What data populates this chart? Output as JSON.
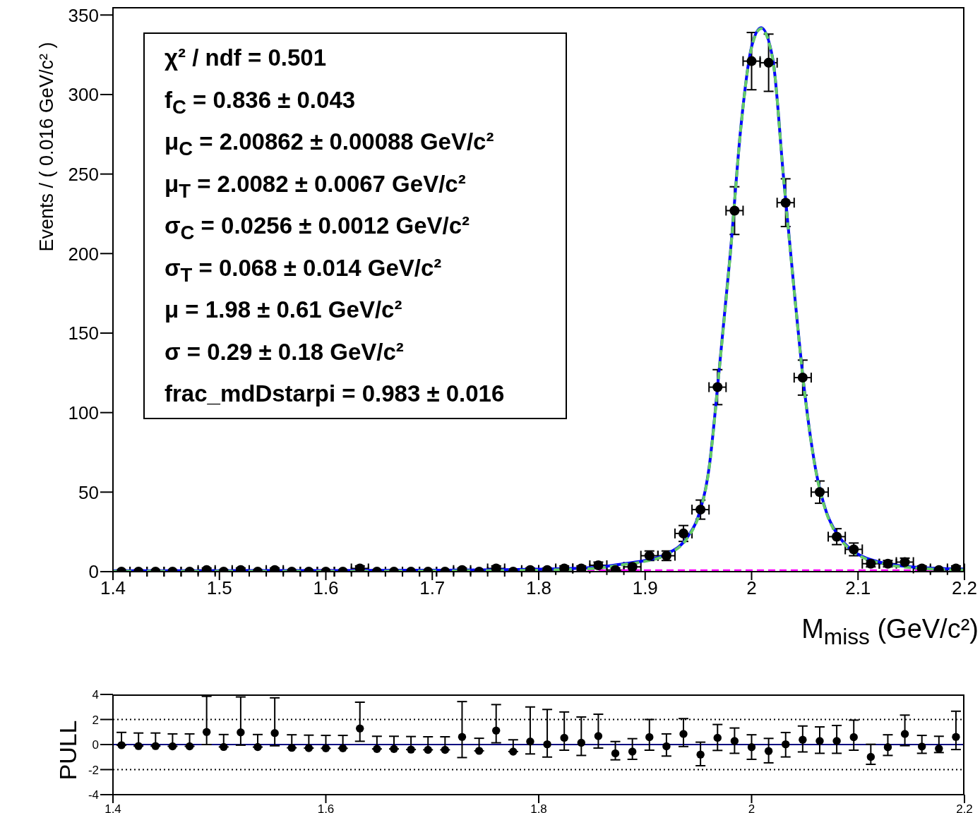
{
  "chart_data": [
    {
      "type": "scatter",
      "xlabel": "M$_{miss}$ (GeV/c²)",
      "ylabel": "Events / ( 0.016 GeV/c² )",
      "x": [
        1.408,
        1.424,
        1.44,
        1.456,
        1.472,
        1.488,
        1.504,
        1.52,
        1.536,
        1.552,
        1.568,
        1.584,
        1.6,
        1.616,
        1.632,
        1.648,
        1.664,
        1.68,
        1.696,
        1.712,
        1.728,
        1.744,
        1.76,
        1.776,
        1.792,
        1.808,
        1.824,
        1.84,
        1.856,
        1.872,
        1.888,
        1.904,
        1.92,
        1.936,
        1.952,
        1.968,
        1.984,
        2.0,
        2.016,
        2.032,
        2.048,
        2.064,
        2.08,
        2.096,
        2.112,
        2.128,
        2.144,
        2.16,
        2.176,
        2.192
      ],
      "xlim": [
        1.4,
        2.2
      ],
      "xticks": [
        1.4,
        1.5,
        1.6,
        1.7,
        1.8,
        1.9,
        2,
        2.1,
        2.2
      ],
      "ylim": [
        0,
        355
      ],
      "yticks": [
        0,
        50,
        100,
        150,
        200,
        250,
        300,
        350
      ],
      "series": [
        {
          "marker": "circle",
          "color": "#000000",
          "values": [
            0,
            0,
            0,
            0,
            0,
            1,
            0,
            1,
            0,
            1,
            0,
            0,
            0,
            0,
            2,
            0,
            0,
            0,
            0,
            0,
            1,
            0,
            2,
            0,
            1,
            1,
            2,
            2,
            4,
            1,
            3,
            10,
            10,
            24,
            39,
            116,
            227,
            321,
            320,
            232,
            122,
            50,
            22,
            14,
            5,
            5,
            6,
            2,
            1,
            2
          ],
          "errors": [
            [
              0,
              1.1
            ],
            [
              0,
              1.1
            ],
            [
              0,
              1.1
            ],
            [
              0,
              1.1
            ],
            [
              0,
              1.1
            ],
            [
              0.2,
              2.3
            ],
            [
              0,
              1.1
            ],
            [
              0.2,
              2.3
            ],
            [
              0,
              1.1
            ],
            [
              0.2,
              2.3
            ],
            [
              0,
              1.1
            ],
            [
              0,
              1.1
            ],
            [
              0,
              1.1
            ],
            [
              0,
              1.1
            ],
            [
              0.7,
              3.6
            ],
            [
              0,
              1.1
            ],
            [
              0,
              1.1
            ],
            [
              0,
              1.1
            ],
            [
              0,
              1.1
            ],
            [
              0,
              1.1
            ],
            [
              0.2,
              2.3
            ],
            [
              0,
              1.1
            ],
            [
              0.7,
              3.6
            ],
            [
              0,
              1.1
            ],
            [
              0.2,
              2.3
            ],
            [
              0.2,
              2.3
            ],
            [
              0.7,
              3.6
            ],
            [
              0.7,
              3.6
            ],
            2,
            [
              0.2,
              2.3
            ],
            2,
            3,
            3,
            5,
            6,
            11,
            15,
            18,
            18,
            15,
            11,
            7,
            5,
            4,
            2,
            2,
            2.5,
            [
              0.7,
              3.6
            ],
            [
              0.2,
              2.3
            ],
            [
              0.7,
              3.6
            ]
          ],
          "xerrors": [
            0.008,
            0.008,
            0.008,
            0.008,
            0.008,
            0.008,
            0.008,
            0.008,
            0.008,
            0.008,
            0.008,
            0.008,
            0.008,
            0.008,
            0.008,
            0.008,
            0.008,
            0.008,
            0.008,
            0.008,
            0.008,
            0.008,
            0.008,
            0.008,
            0.008,
            0.008,
            0.008,
            0.008,
            0.008,
            0.008,
            0.008,
            0.008,
            0.008,
            0.008,
            0.008,
            0.008,
            0.008,
            0.008,
            0.008,
            0.008,
            0.008,
            0.008,
            0.008,
            0.008,
            0.008,
            0.008,
            0.008,
            0.008,
            0.008,
            0.008
          ]
        },
        {
          "type": "line",
          "color": "#ff00ff",
          "line_style": "dashed",
          "x": [
            1.4,
            1.6,
            1.8,
            2.0,
            2.2
          ],
          "values": [
            0.3,
            0.5,
            0.5,
            0.5,
            0.5
          ]
        },
        {
          "type": "line",
          "color": "#0000ff",
          "line_style": "solid",
          "x": [
            1.4,
            1.5,
            1.6,
            1.7,
            1.75,
            1.8,
            1.83,
            1.86,
            1.88,
            1.9,
            1.92,
            1.94,
            1.95,
            1.96,
            1.97,
            1.98,
            1.99,
            2.0,
            2.009,
            2.02,
            2.03,
            2.04,
            2.05,
            2.06,
            2.07,
            2.08,
            2.09,
            2.1,
            2.12,
            2.15,
            2.2
          ],
          "values": [
            0.5,
            0.6,
            0.7,
            0.9,
            1.1,
            1.5,
            2,
            3,
            5,
            7,
            11,
            22,
            35,
            65,
            130,
            200,
            280,
            330,
            342,
            322,
            248,
            177,
            112,
            65,
            38,
            24,
            16,
            11,
            6,
            3,
            1.5
          ]
        },
        {
          "type": "line",
          "color": "#66cc66",
          "line_style": "dashed",
          "x": [
            1.4,
            1.5,
            1.6,
            1.7,
            1.75,
            1.8,
            1.83,
            1.86,
            1.88,
            1.9,
            1.92,
            1.94,
            1.95,
            1.96,
            1.97,
            1.98,
            1.99,
            2.0,
            2.009,
            2.02,
            2.03,
            2.04,
            2.05,
            2.06,
            2.07,
            2.08,
            2.09,
            2.1,
            2.12,
            2.15,
            2.2
          ],
          "values": [
            0.2,
            0.2,
            0.2,
            0.4,
            0.6,
            0.9,
            1.4,
            2.5,
            4.5,
            6.5,
            10.5,
            21.5,
            34.5,
            64.5,
            129.5,
            199.5,
            279.5,
            329.5,
            341.5,
            321.5,
            247.5,
            176.5,
            111.5,
            64.5,
            37.5,
            23.5,
            15.5,
            10.5,
            5.5,
            2.5,
            1
          ]
        }
      ],
      "annotations": [
        "χ² / ndf = 0.501",
        "f$_{C}$ =  0.836 ± 0.043",
        "μ$_{C}$ =  2.00862 ± 0.00088 GeV/c²",
        "μ$_{T}$ =  2.0082 ± 0.0067 GeV/c²",
        "σ$_{C}$ =  0.0256 ± 0.0012 GeV/c²",
        "σ$_{T}$ =  0.068 ± 0.014 GeV/c²",
        "μ =  1.98 ± 0.61 GeV/c²",
        "σ =  0.29 ± 0.18 GeV/c²",
        "frac_mdDstarpi =  0.983 ± 0.016"
      ]
    },
    {
      "type": "scatter",
      "ylabel": "PULL",
      "x": [
        1.408,
        1.424,
        1.44,
        1.456,
        1.472,
        1.488,
        1.504,
        1.52,
        1.536,
        1.552,
        1.568,
        1.584,
        1.6,
        1.616,
        1.632,
        1.648,
        1.664,
        1.68,
        1.696,
        1.712,
        1.728,
        1.744,
        1.76,
        1.776,
        1.792,
        1.808,
        1.824,
        1.84,
        1.856,
        1.872,
        1.888,
        1.904,
        1.92,
        1.936,
        1.952,
        1.968,
        1.984,
        2.0,
        2.016,
        2.032,
        2.048,
        2.064,
        2.08,
        2.096,
        2.112,
        2.128,
        2.144,
        2.16,
        2.176,
        2.192
      ],
      "xlim": [
        1.4,
        2.2
      ],
      "xticks": [
        1.4,
        1.6,
        1.8,
        2,
        2.2
      ],
      "ylim": [
        -4,
        4
      ],
      "yticks": [
        -4,
        -2,
        0,
        2,
        4
      ],
      "series": [
        {
          "marker": "circle",
          "color": "#000000",
          "values": [
            -0.05,
            -0.12,
            -0.12,
            -0.14,
            -0.14,
            1.0,
            -0.19,
            0.97,
            -0.2,
            0.92,
            -0.26,
            -0.28,
            -0.3,
            -0.3,
            1.28,
            -0.35,
            -0.35,
            -0.4,
            -0.42,
            -0.42,
            0.61,
            -0.5,
            1.11,
            -0.56,
            0.24,
            0.02,
            0.54,
            0.14,
            0.68,
            -0.7,
            -0.56,
            0.59,
            -0.14,
            0.85,
            -0.8,
            0.54,
            0.28,
            -0.21,
            -0.52,
            0.02,
            0.38,
            0.28,
            0.28,
            0.59,
            -0.99,
            -0.21,
            0.85,
            -0.16,
            -0.33,
            0.61
          ],
          "errors": [
            [
              -0.05,
              0.97
            ],
            [
              -0.12,
              0.92
            ],
            [
              -0.12,
              0.92
            ],
            [
              -0.14,
              0.85
            ],
            [
              -0.14,
              0.85
            ],
            [
              0.0,
              3.85
            ],
            [
              -0.19,
              0.8
            ],
            [
              -0.05,
              3.8
            ],
            [
              -0.2,
              0.8
            ],
            [
              -0.1,
              3.73
            ],
            [
              -0.26,
              0.78
            ],
            [
              -0.28,
              0.75
            ],
            [
              -0.3,
              0.73
            ],
            [
              -0.3,
              0.73
            ],
            [
              0.26,
              3.38
            ],
            [
              -0.35,
              0.66
            ],
            [
              -0.35,
              0.66
            ],
            [
              -0.4,
              0.64
            ],
            [
              -0.42,
              0.62
            ],
            [
              -0.42,
              0.62
            ],
            [
              -1.04,
              3.43
            ],
            [
              -0.5,
              0.5
            ],
            [
              0.14,
              3.19
            ],
            [
              -0.56,
              0.38
            ],
            [
              -0.75,
              3.0
            ],
            [
              -1.0,
              2.8
            ],
            [
              -0.45,
              2.6
            ],
            [
              -0.87,
              2.2
            ],
            [
              -0.28,
              2.42
            ],
            [
              -1.22,
              0.24
            ],
            [
              -1.18,
              0.47
            ],
            [
              -0.45,
              2.0
            ],
            [
              -0.92,
              0.85
            ],
            [
              -0.16,
              2.07
            ],
            [
              -1.69,
              0.19
            ],
            [
              -0.47,
              1.6
            ],
            [
              -0.7,
              1.32
            ],
            [
              -1.18,
              0.78
            ],
            [
              -1.46,
              0.49
            ],
            [
              -0.99,
              0.96
            ],
            [
              -0.59,
              1.48
            ],
            [
              -0.7,
              1.41
            ],
            [
              -0.7,
              1.52
            ],
            [
              -0.45,
              1.95
            ],
            [
              -1.58,
              0.02
            ],
            [
              -0.87,
              0.78
            ],
            [
              -0.09,
              2.35
            ],
            [
              -0.7,
              0.73
            ],
            [
              -0.64,
              0.66
            ],
            [
              -0.4,
              2.66
            ]
          ]
        }
      ],
      "ref_lines": [
        {
          "axis": "y",
          "value": 0,
          "color": "#000080",
          "line_style": "solid"
        },
        {
          "axis": "y",
          "value": 2,
          "color": "#000000",
          "line_style": "dotted"
        },
        {
          "axis": "y",
          "value": -2,
          "color": "#000000",
          "line_style": "dotted"
        }
      ]
    }
  ]
}
